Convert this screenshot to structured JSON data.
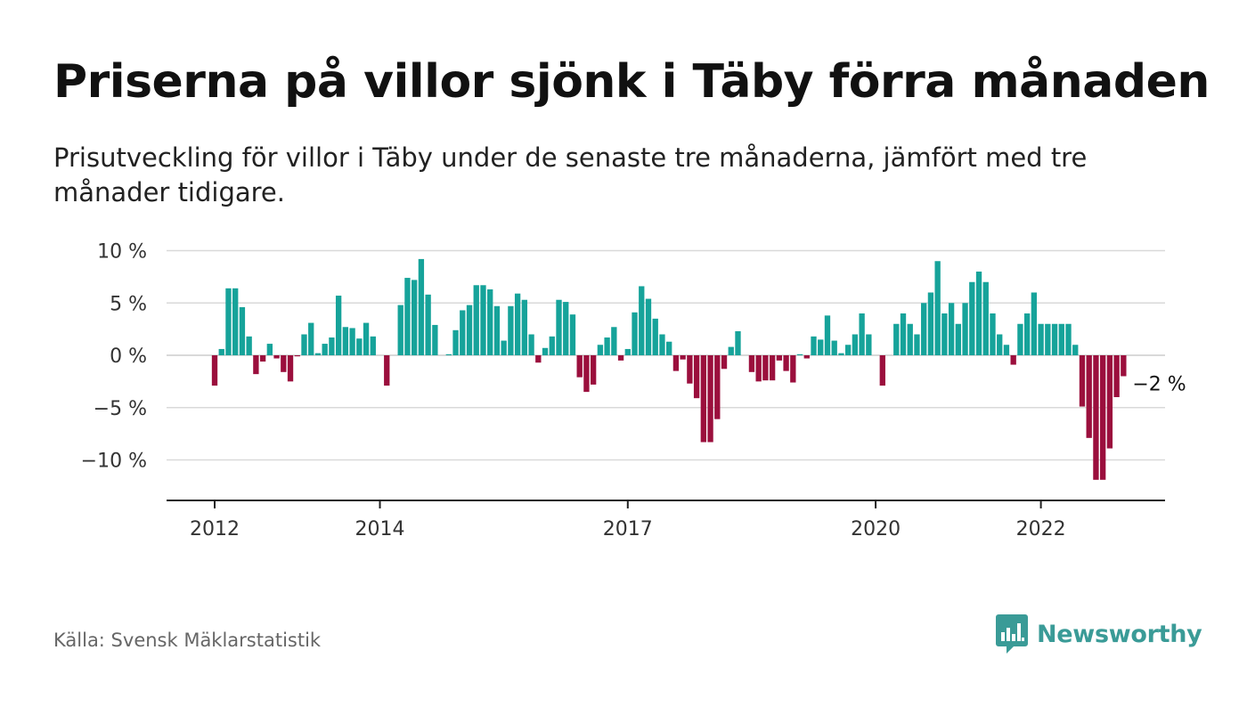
{
  "title": "Priserna på villor sjönk i Täby förra månaden",
  "subtitle": "Prisutveckling för villor i Täby under de senaste tre månaderna, jämfört med tre månader tidigare.",
  "source": "Källa: Svensk Mäklarstatistik",
  "brand": {
    "name": "Newsworthy",
    "icon": "bar-chart-speech-bubble-icon"
  },
  "colors": {
    "positive": "#16a39a",
    "negative": "#9b0f3d",
    "grid": "#d9d9d9",
    "axis": "#222222",
    "brand": "#3a9b97"
  },
  "chart_data": {
    "type": "bar",
    "title": "Priserna på villor sjönk i Täby förra månaden",
    "subtitle": "Prisutveckling för villor i Täby under de senaste tre månaderna, jämfört med tre månader tidigare.",
    "xlabel": "",
    "ylabel": "",
    "ylim": [
      -12,
      10
    ],
    "yticks": [
      10,
      5,
      0,
      -5,
      -10
    ],
    "ytick_labels": [
      "10 %",
      "5 %",
      "0 %",
      "−5 %",
      "−10 %"
    ],
    "xticks": [
      "2012",
      "2014",
      "2017",
      "2020",
      "2022"
    ],
    "xtick_months": [
      "2012-01",
      "2014-01",
      "2017-01",
      "2020-01",
      "2022-01"
    ],
    "grid": true,
    "start_month": "2012-01",
    "series": [
      {
        "values": [
          -2.9,
          0.6,
          6.4,
          6.4,
          4.6,
          1.8,
          -1.8,
          -0.6,
          1.1,
          -0.3,
          -1.6,
          -2.5,
          -0.1,
          2.0,
          3.1,
          0.2,
          1.1,
          1.7,
          5.7,
          2.7,
          2.6,
          1.6,
          3.1,
          1.8,
          0.0,
          -2.9,
          0.0,
          4.8,
          7.4,
          7.2,
          9.2,
          5.8,
          2.9,
          0.0,
          0.1,
          2.4,
          4.3,
          4.8,
          6.7,
          6.7,
          6.3,
          4.7,
          1.4,
          4.7,
          5.9,
          5.3,
          2.0,
          -0.7,
          0.7,
          1.8,
          5.3,
          5.1,
          3.9,
          -2.1,
          -3.5,
          -2.8,
          1.0,
          1.7,
          2.7,
          -0.5,
          0.6,
          4.1,
          6.6,
          5.4,
          3.5,
          2.0,
          1.3,
          -1.5,
          -0.4,
          -2.7,
          -4.1,
          -8.3,
          -8.3,
          -6.1,
          -1.3,
          0.8,
          2.3,
          0.0,
          -1.6,
          -2.5,
          -2.4,
          -2.4,
          -0.5,
          -1.5,
          -2.6,
          0.1,
          -0.3,
          1.8,
          1.5,
          3.8,
          1.4,
          0.2,
          1.0,
          2.0,
          4.0,
          2.0,
          0.0,
          -2.9,
          0.0,
          3.0,
          4.0,
          3.0,
          2.0,
          5.0,
          6.0,
          9.0,
          4.0,
          5.0,
          3.0,
          5.0,
          7.0,
          8.0,
          7.0,
          4.0,
          2.0,
          1.0,
          -0.9,
          3.0,
          4.0,
          6.0,
          3.0,
          3.0,
          3.0,
          3.0,
          3.0,
          1.0,
          -4.9,
          -7.9,
          -11.9,
          -11.9,
          -8.9,
          -4.0,
          -2.0
        ]
      }
    ],
    "annotations": [
      {
        "month_index": 132,
        "text": "−2 %"
      }
    ]
  }
}
